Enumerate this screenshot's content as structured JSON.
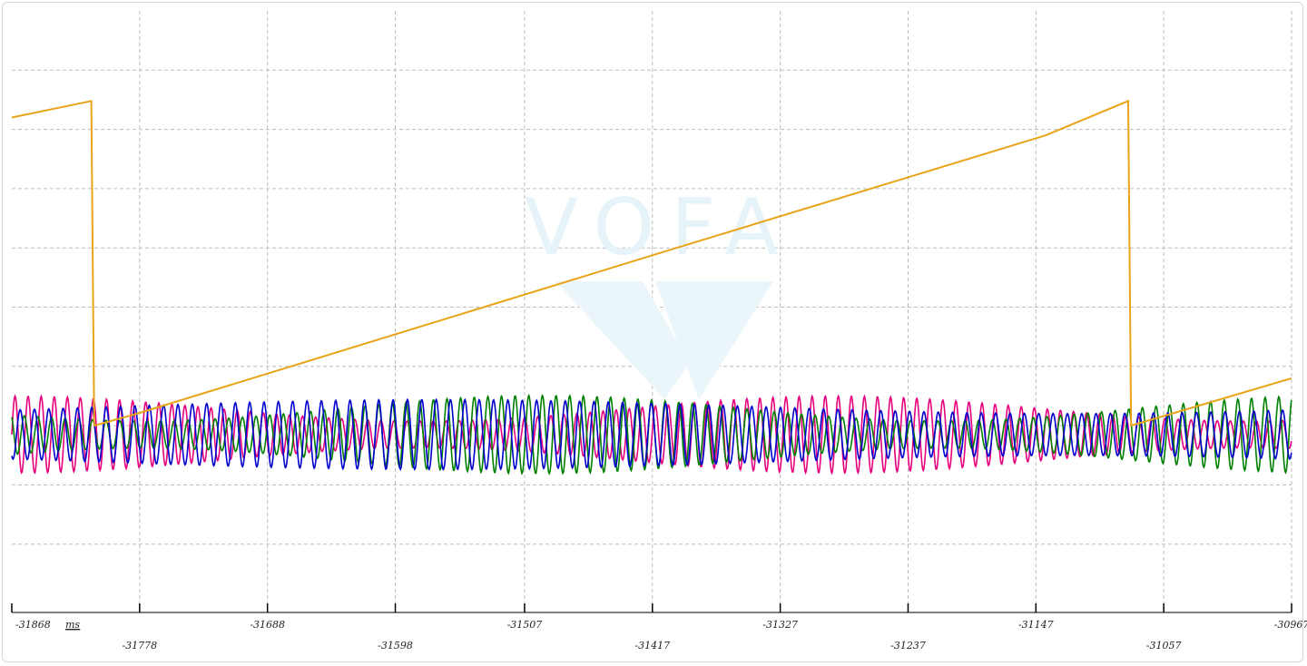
{
  "app": {
    "watermark_text": "VOFA"
  },
  "chart_data": {
    "type": "line",
    "xlabel": "ms",
    "x_ticks": [
      -31868,
      -31778,
      -31688,
      -31598,
      -31507,
      -31417,
      -31327,
      -31237,
      -31147,
      -31057,
      -30967
    ],
    "xlim": [
      -31868,
      -30967
    ],
    "ylim": [
      0,
      100
    ],
    "grid": true,
    "legend": "none",
    "series": [
      {
        "color": "#e8a317",
        "shape": "sawtooth",
        "points": [
          [
            -31868,
            82
          ],
          [
            -31812,
            84.8
          ],
          [
            -31810,
            30
          ],
          [
            -31780,
            32
          ],
          [
            -31400,
            60
          ],
          [
            -31140,
            79
          ],
          [
            -31082,
            84.8
          ],
          [
            -31080,
            30
          ],
          [
            -30967,
            38
          ]
        ]
      },
      {
        "color": "#e6007e",
        "shape": "oscillation",
        "center": 28.5,
        "amplitude": 6.5,
        "period_ms": 9.2,
        "envelope_period_ms": 580,
        "envelope_min": 0.35,
        "phase": 0.0
      },
      {
        "color": "#008000",
        "shape": "oscillation",
        "center": 28.5,
        "amplitude": 6.6,
        "period_ms": 9.6,
        "envelope_period_ms": 560,
        "envelope_min": 0.35,
        "phase": 2.1
      },
      {
        "color": "#0000cd",
        "shape": "oscillation",
        "center": 28.5,
        "amplitude": 5.9,
        "period_ms": 10.1,
        "envelope_period_ms": 900,
        "envelope_min": 0.6,
        "phase": 4.2
      }
    ]
  }
}
